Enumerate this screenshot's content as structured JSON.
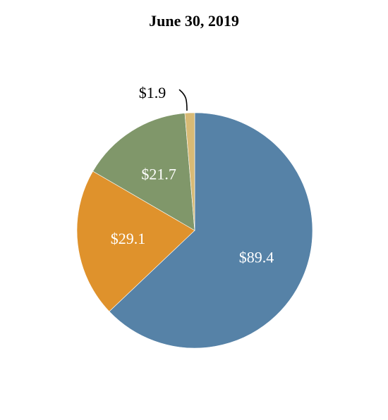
{
  "chart_data": {
    "type": "pie",
    "title": "June 30, 2019",
    "slices": [
      {
        "label": "$89.4",
        "value": 89.4,
        "color": "#5682a7"
      },
      {
        "label": "$29.1",
        "value": 29.1,
        "color": "#df922c"
      },
      {
        "label": "$21.7",
        "value": 21.7,
        "color": "#80976a"
      },
      {
        "label": "$1.9",
        "value": 1.9,
        "color": "#d8ba75"
      }
    ],
    "label_colors": {
      "inside": "#ffffff",
      "outside": "#000000"
    },
    "legend": "none"
  }
}
